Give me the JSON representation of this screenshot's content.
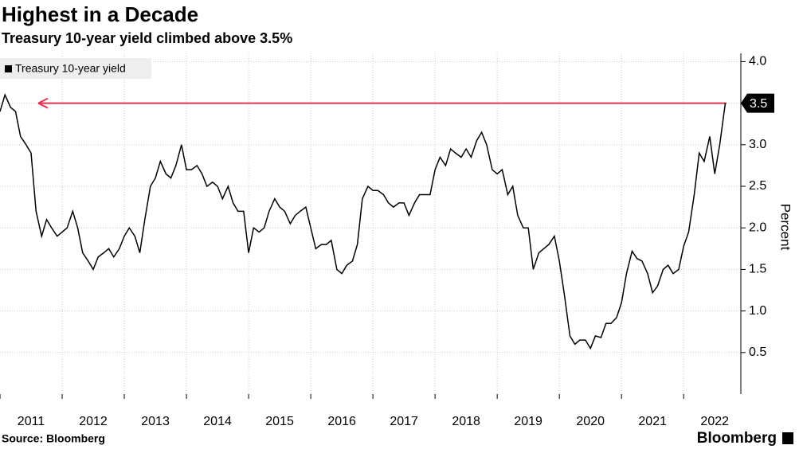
{
  "chart_data": {
    "type": "line",
    "title": "Highest in a Decade",
    "subtitle": "Treasury 10-year yield climbed above 3.5%",
    "source": "Source: Bloomberg",
    "brand": "Bloomberg",
    "y_axis_label": "Percent",
    "reference_line": 3.5,
    "x": [
      2011.0,
      2011.08,
      2011.17,
      2011.25,
      2011.33,
      2011.42,
      2011.5,
      2011.58,
      2011.67,
      2011.75,
      2011.83,
      2011.92,
      2012.0,
      2012.08,
      2012.17,
      2012.25,
      2012.33,
      2012.42,
      2012.5,
      2012.58,
      2012.67,
      2012.75,
      2012.83,
      2012.92,
      2013.0,
      2013.08,
      2013.17,
      2013.25,
      2013.33,
      2013.42,
      2013.5,
      2013.58,
      2013.67,
      2013.75,
      2013.83,
      2013.92,
      2014.0,
      2014.08,
      2014.17,
      2014.25,
      2014.33,
      2014.42,
      2014.5,
      2014.58,
      2014.67,
      2014.75,
      2014.83,
      2014.92,
      2015.0,
      2015.08,
      2015.17,
      2015.25,
      2015.33,
      2015.42,
      2015.5,
      2015.58,
      2015.67,
      2015.75,
      2015.83,
      2015.92,
      2016.0,
      2016.08,
      2016.17,
      2016.25,
      2016.33,
      2016.42,
      2016.5,
      2016.58,
      2016.67,
      2016.75,
      2016.83,
      2016.92,
      2017.0,
      2017.08,
      2017.17,
      2017.25,
      2017.33,
      2017.42,
      2017.5,
      2017.58,
      2017.67,
      2017.75,
      2017.83,
      2017.92,
      2018.0,
      2018.08,
      2018.17,
      2018.25,
      2018.33,
      2018.42,
      2018.5,
      2018.58,
      2018.67,
      2018.75,
      2018.83,
      2018.92,
      2019.0,
      2019.08,
      2019.17,
      2019.25,
      2019.33,
      2019.42,
      2019.5,
      2019.58,
      2019.67,
      2019.75,
      2019.83,
      2019.92,
      2020.0,
      2020.08,
      2020.17,
      2020.25,
      2020.33,
      2020.42,
      2020.5,
      2020.58,
      2020.67,
      2020.75,
      2020.83,
      2020.92,
      2021.0,
      2021.08,
      2021.17,
      2021.25,
      2021.33,
      2021.42,
      2021.5,
      2021.58,
      2021.67,
      2021.75,
      2021.83,
      2021.92,
      2022.0,
      2022.08,
      2022.17,
      2022.25,
      2022.33,
      2022.42,
      2022.5,
      2022.58,
      2022.67
    ],
    "series": [
      {
        "name": "Treasury 10-year yield",
        "color": "#000000",
        "values": [
          3.4,
          3.6,
          3.45,
          3.4,
          3.1,
          3.0,
          2.9,
          2.2,
          1.9,
          2.1,
          2.0,
          1.9,
          1.95,
          2.0,
          2.2,
          2.0,
          1.7,
          1.6,
          1.5,
          1.65,
          1.7,
          1.75,
          1.65,
          1.75,
          1.9,
          2.0,
          1.9,
          1.7,
          2.1,
          2.5,
          2.6,
          2.8,
          2.65,
          2.6,
          2.75,
          3.0,
          2.7,
          2.7,
          2.75,
          2.65,
          2.5,
          2.55,
          2.5,
          2.35,
          2.5,
          2.3,
          2.2,
          2.2,
          1.7,
          2.0,
          1.95,
          2.0,
          2.2,
          2.35,
          2.25,
          2.2,
          2.05,
          2.15,
          2.2,
          2.25,
          2.0,
          1.75,
          1.8,
          1.8,
          1.85,
          1.5,
          1.45,
          1.55,
          1.6,
          1.8,
          2.35,
          2.5,
          2.45,
          2.45,
          2.4,
          2.3,
          2.25,
          2.3,
          2.3,
          2.15,
          2.3,
          2.4,
          2.4,
          2.4,
          2.7,
          2.85,
          2.75,
          2.95,
          2.9,
          2.85,
          2.95,
          2.85,
          3.05,
          3.15,
          3.0,
          2.7,
          2.65,
          2.7,
          2.4,
          2.5,
          2.15,
          2.0,
          2.0,
          1.5,
          1.7,
          1.75,
          1.8,
          1.9,
          1.6,
          1.2,
          0.7,
          0.6,
          0.65,
          0.65,
          0.55,
          0.7,
          0.68,
          0.85,
          0.85,
          0.92,
          1.1,
          1.45,
          1.72,
          1.63,
          1.6,
          1.45,
          1.22,
          1.3,
          1.5,
          1.55,
          1.45,
          1.5,
          1.78,
          1.95,
          2.4,
          2.9,
          2.8,
          3.1,
          2.65,
          3.0,
          3.5
        ]
      }
    ],
    "xlim": [
      2011,
      2022.92
    ],
    "xticks": [
      2011,
      2012,
      2013,
      2014,
      2015,
      2016,
      2017,
      2018,
      2019,
      2020,
      2021,
      2022
    ],
    "ylim": [
      0,
      4.1
    ],
    "yticks": [
      0.5,
      {
        "value": 1,
        "label": "1.0"
      },
      1.5,
      {
        "value": 2,
        "label": "2.0"
      },
      2.5,
      {
        "value": 3,
        "label": "3.0"
      },
      3.5,
      {
        "value": 4,
        "label": "4.0"
      }
    ],
    "grid": true
  }
}
